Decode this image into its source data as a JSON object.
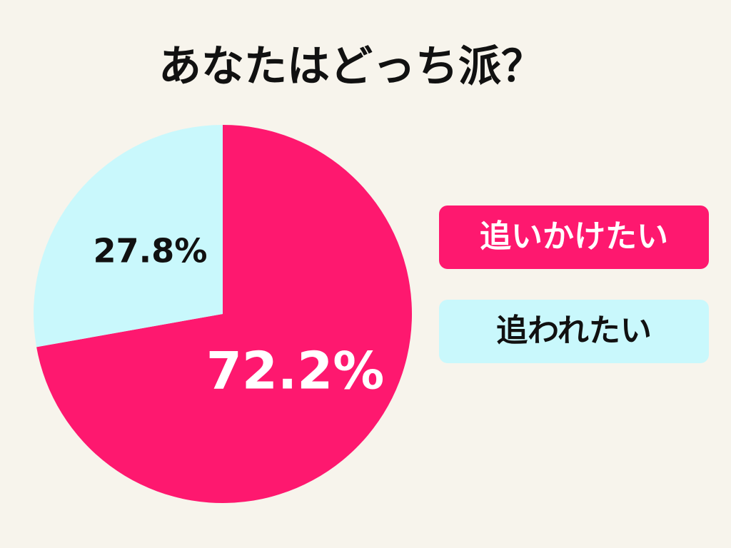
{
  "chart_data": {
    "type": "pie",
    "title": "あなたはどっち派？",
    "categories": [
      "追いかけたい",
      "追われたい"
    ],
    "values": [
      72.2,
      27.8
    ],
    "value_labels": [
      "72.2%",
      "27.8%"
    ],
    "colors": [
      "#fe186f",
      "#c9f8fc"
    ],
    "legend": "right"
  }
}
